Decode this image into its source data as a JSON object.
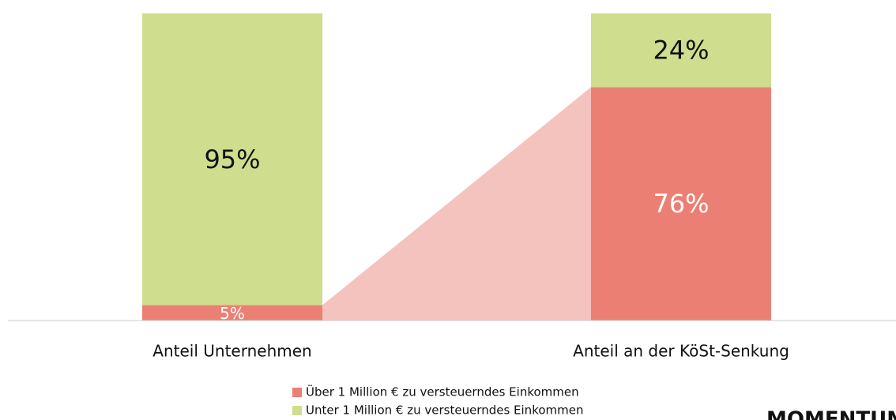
{
  "chart_data": {
    "type": "stacked_bar",
    "categories": [
      "Anteil Unternehmen",
      "Anteil an der KöSt-Senkung"
    ],
    "series": [
      {
        "name": "Über 1 Million € zu versteuerndes Einkommen",
        "color": "#ec7f73",
        "values": [
          5,
          76
        ],
        "value_labels": [
          "5%",
          "76%"
        ]
      },
      {
        "name": "Unter 1 Million € zu versteuerndes Einkommen",
        "color": "#cfdd8e",
        "values": [
          95,
          24
        ],
        "value_labels": [
          "95%",
          "24%"
        ]
      }
    ],
    "ylim": [
      0,
      100
    ],
    "logo": "MOMENTUM"
  }
}
